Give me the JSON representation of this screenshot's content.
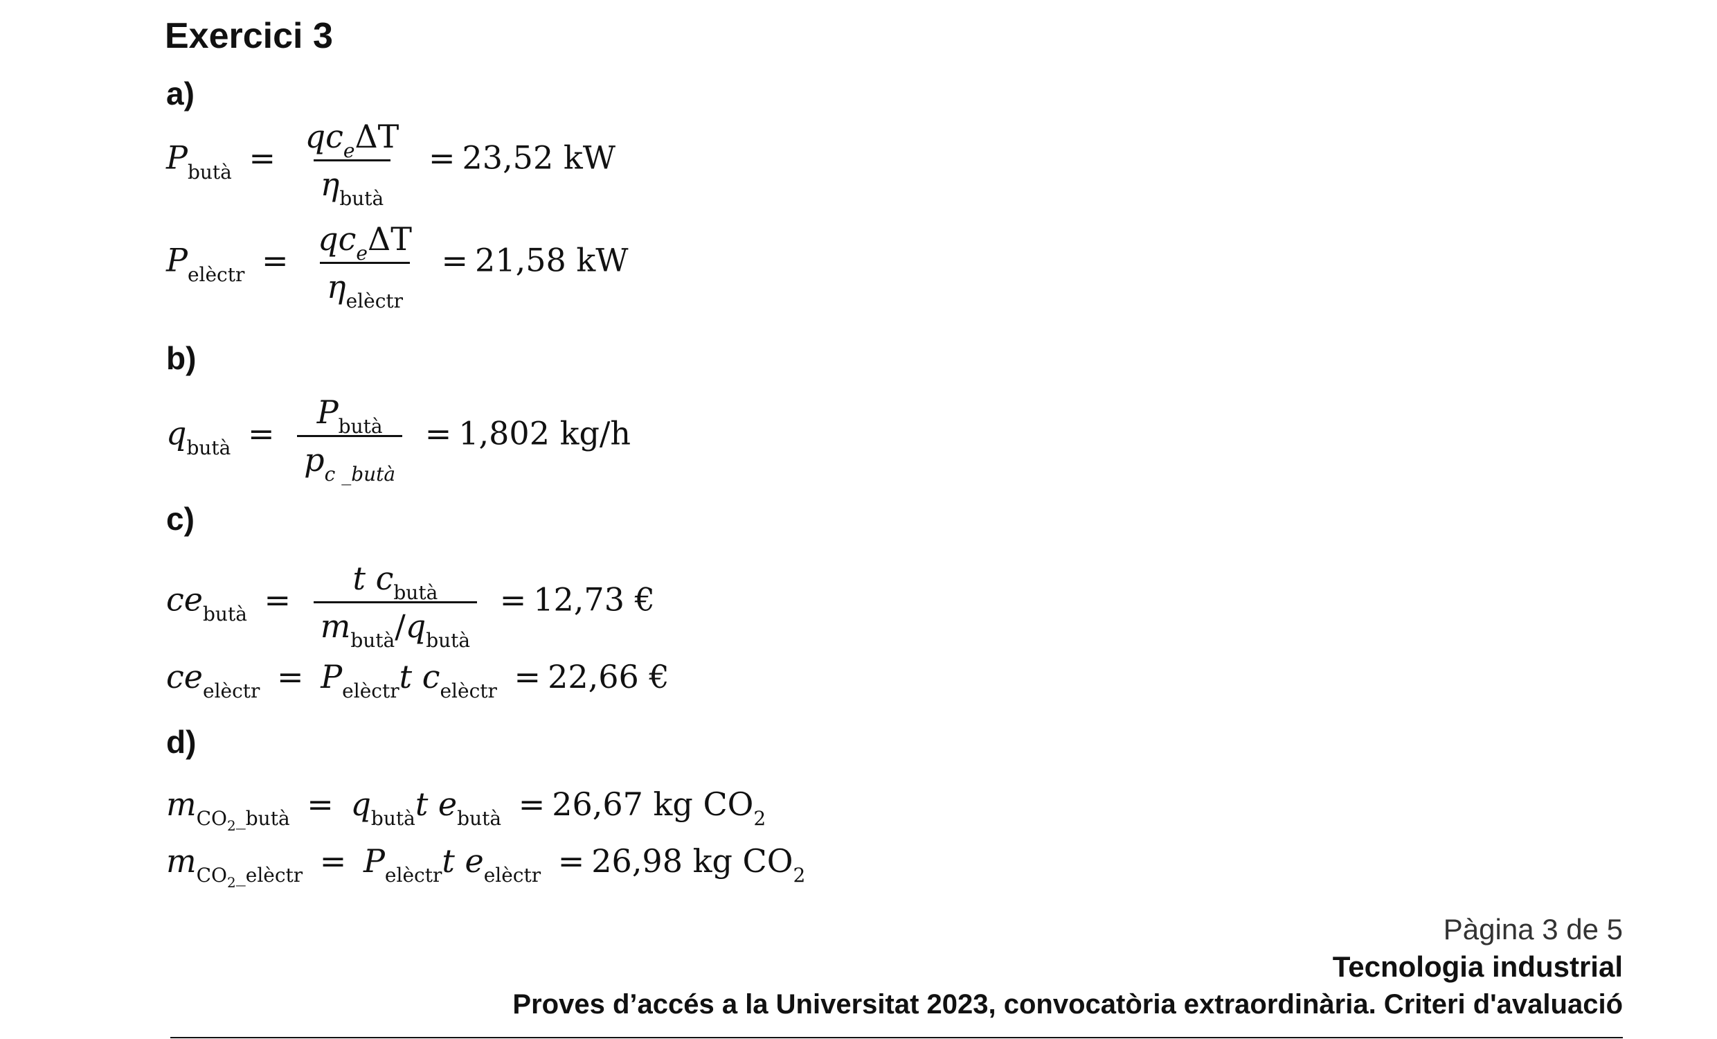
{
  "title": "Exercici 3",
  "parts": {
    "a": "a)",
    "b": "b)",
    "c": "c)",
    "d": "d)"
  },
  "subs": {
    "buta": "butà",
    "electr": "elèctr",
    "c_buta": "c _butà",
    "co2_buta_pre": "CO",
    "co2_buta_post": "_butà",
    "co2_electr_pre": "CO",
    "co2_electr_post": "_elèctr",
    "two": "2"
  },
  "results": {
    "P_buta": "23,52 kW",
    "P_electr": "21,58 kW",
    "q_buta": "1,802 kg/h",
    "ce_buta": "12,73 €",
    "ce_electr": "22,66 €",
    "m_buta": "26,67 kg CO",
    "m_electr": "26,98 kg CO"
  },
  "footer": {
    "page": "Pàgina 3 de 5",
    "subject": "Tecnologia industrial",
    "exam": "Proves d’accés a la Universitat 2023, convocatòria extraordinària. Criteri d'avaluació"
  }
}
